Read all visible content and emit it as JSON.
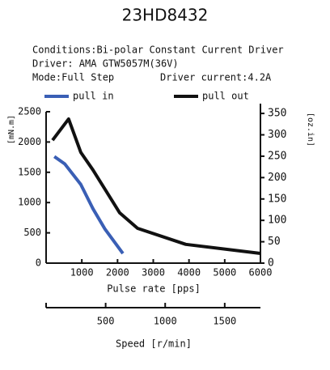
{
  "chart_data": {
    "type": "line",
    "title": "23HD8432",
    "conditions": [
      "Conditions:Bi-polar Constant Current Driver",
      "Driver: AMA GTW5057M(36V)",
      "Mode:Full Step",
      "Driver current:4.2A"
    ],
    "xlabel": "Pulse rate [pps]",
    "ylabel": "[mN.m]",
    "y2label": "[oz.in]",
    "xlim": [
      0,
      6000
    ],
    "xticks": [
      1000,
      2000,
      3000,
      4000,
      5000,
      6000
    ],
    "ylim": [
      0,
      2500
    ],
    "yticks": [
      0,
      500,
      1000,
      1500,
      2000,
      2500
    ],
    "y2lim": [
      0,
      354
    ],
    "y2ticks": [
      0,
      50,
      100,
      150,
      200,
      250,
      300,
      350
    ],
    "x2label": "Speed [r/min]",
    "x2lim": [
      0,
      1800
    ],
    "x2ticks": [
      500,
      1000,
      1500
    ],
    "series": [
      {
        "name": "pull in",
        "color": "#3a5fb5",
        "x": [
          230,
          520,
          970,
          1310,
          1650,
          2150
        ],
        "values": [
          1760,
          1640,
          1300,
          900,
          560,
          160
        ]
      },
      {
        "name": "pull out",
        "color": "#111111",
        "x": [
          180,
          630,
          970,
          1310,
          2060,
          2560,
          3910,
          6000
        ],
        "values": [
          2030,
          2380,
          1830,
          1540,
          830,
          575,
          310,
          160
        ]
      }
    ]
  }
}
